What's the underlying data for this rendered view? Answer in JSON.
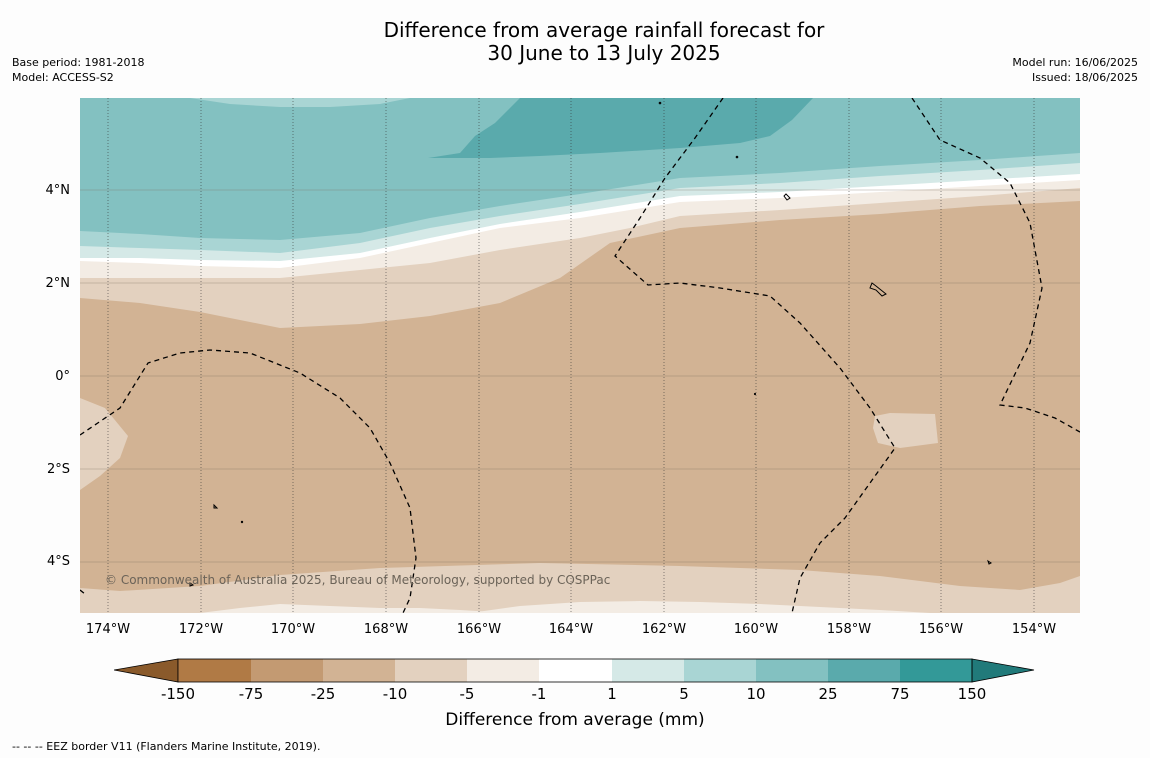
{
  "title": {
    "line1": "Difference from average rainfall forecast for",
    "line2": "30 June to 13 July 2025"
  },
  "meta_left": {
    "base_period": "Base period: 1981-2018",
    "model": "Model: ACCESS-S2"
  },
  "meta_right": {
    "model_run": "Model run: 16/06/2025",
    "issued": "Issued: 18/06/2025"
  },
  "map": {
    "lat_labels": [
      "4°N",
      "2°N",
      "0°",
      "2°S",
      "4°S"
    ],
    "lon_labels": [
      "174°W",
      "172°W",
      "170°W",
      "168°W",
      "166°W",
      "164°W",
      "162°W",
      "160°W",
      "158°W",
      "156°W",
      "154°W"
    ],
    "copyright": "© Commonwealth of Australia 2025, Bureau of Meteorology, supported by COSPPac",
    "colors": {
      "below_150": "#8a5a2b",
      "neg150_neg75": "#b07a45",
      "neg75_neg25": "#c39a72",
      "neg25_neg10": "#d2b394",
      "neg10_neg5": "#e3d1bf",
      "neg5_neg1": "#f3ece4",
      "neg1_1": "#ffffff",
      "p1_5": "#d5e9e7",
      "p5_10": "#a9d5d4",
      "p10_25": "#83c1c1",
      "p25_75": "#5aaaac",
      "p75_150": "#339998",
      "above_150": "#217a7a"
    }
  },
  "colorbar": {
    "ticks": [
      "-150",
      "-75",
      "-25",
      "-10",
      "-5",
      "-1",
      "1",
      "5",
      "10",
      "25",
      "75",
      "150"
    ],
    "label": "Difference from average (mm)"
  },
  "legend_note": "--  --  -- EEZ border V11 (Flanders Marine Institute, 2019)."
}
